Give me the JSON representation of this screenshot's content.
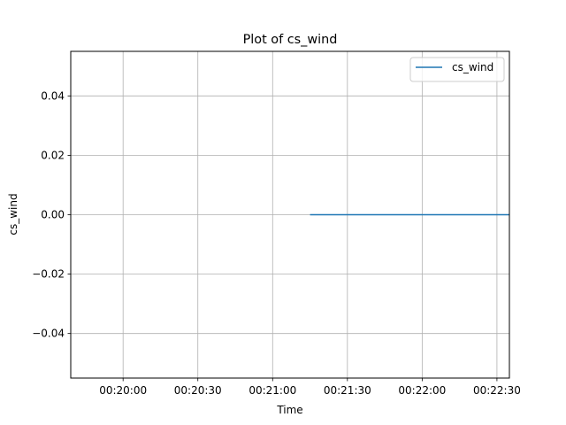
{
  "chart_data": {
    "type": "line",
    "title": "Plot of cs_wind",
    "xlabel": "Time",
    "ylabel": "cs_wind",
    "x_ticks": [
      "00:20:00",
      "00:20:30",
      "00:21:00",
      "00:21:30",
      "00:22:00",
      "00:22:30"
    ],
    "y_ticks": [
      "0.04",
      "0.02",
      "0.00",
      "−0.02",
      "−0.04"
    ],
    "xlim": [
      "00:19:39",
      "00:22:35"
    ],
    "ylim": [
      -0.055,
      0.055
    ],
    "grid": true,
    "legend_position": "upper right",
    "series": [
      {
        "name": "cs_wind",
        "color": "#1f77b4",
        "x": [
          "00:21:15",
          "00:22:35"
        ],
        "y": [
          0.0,
          0.0
        ]
      }
    ]
  }
}
